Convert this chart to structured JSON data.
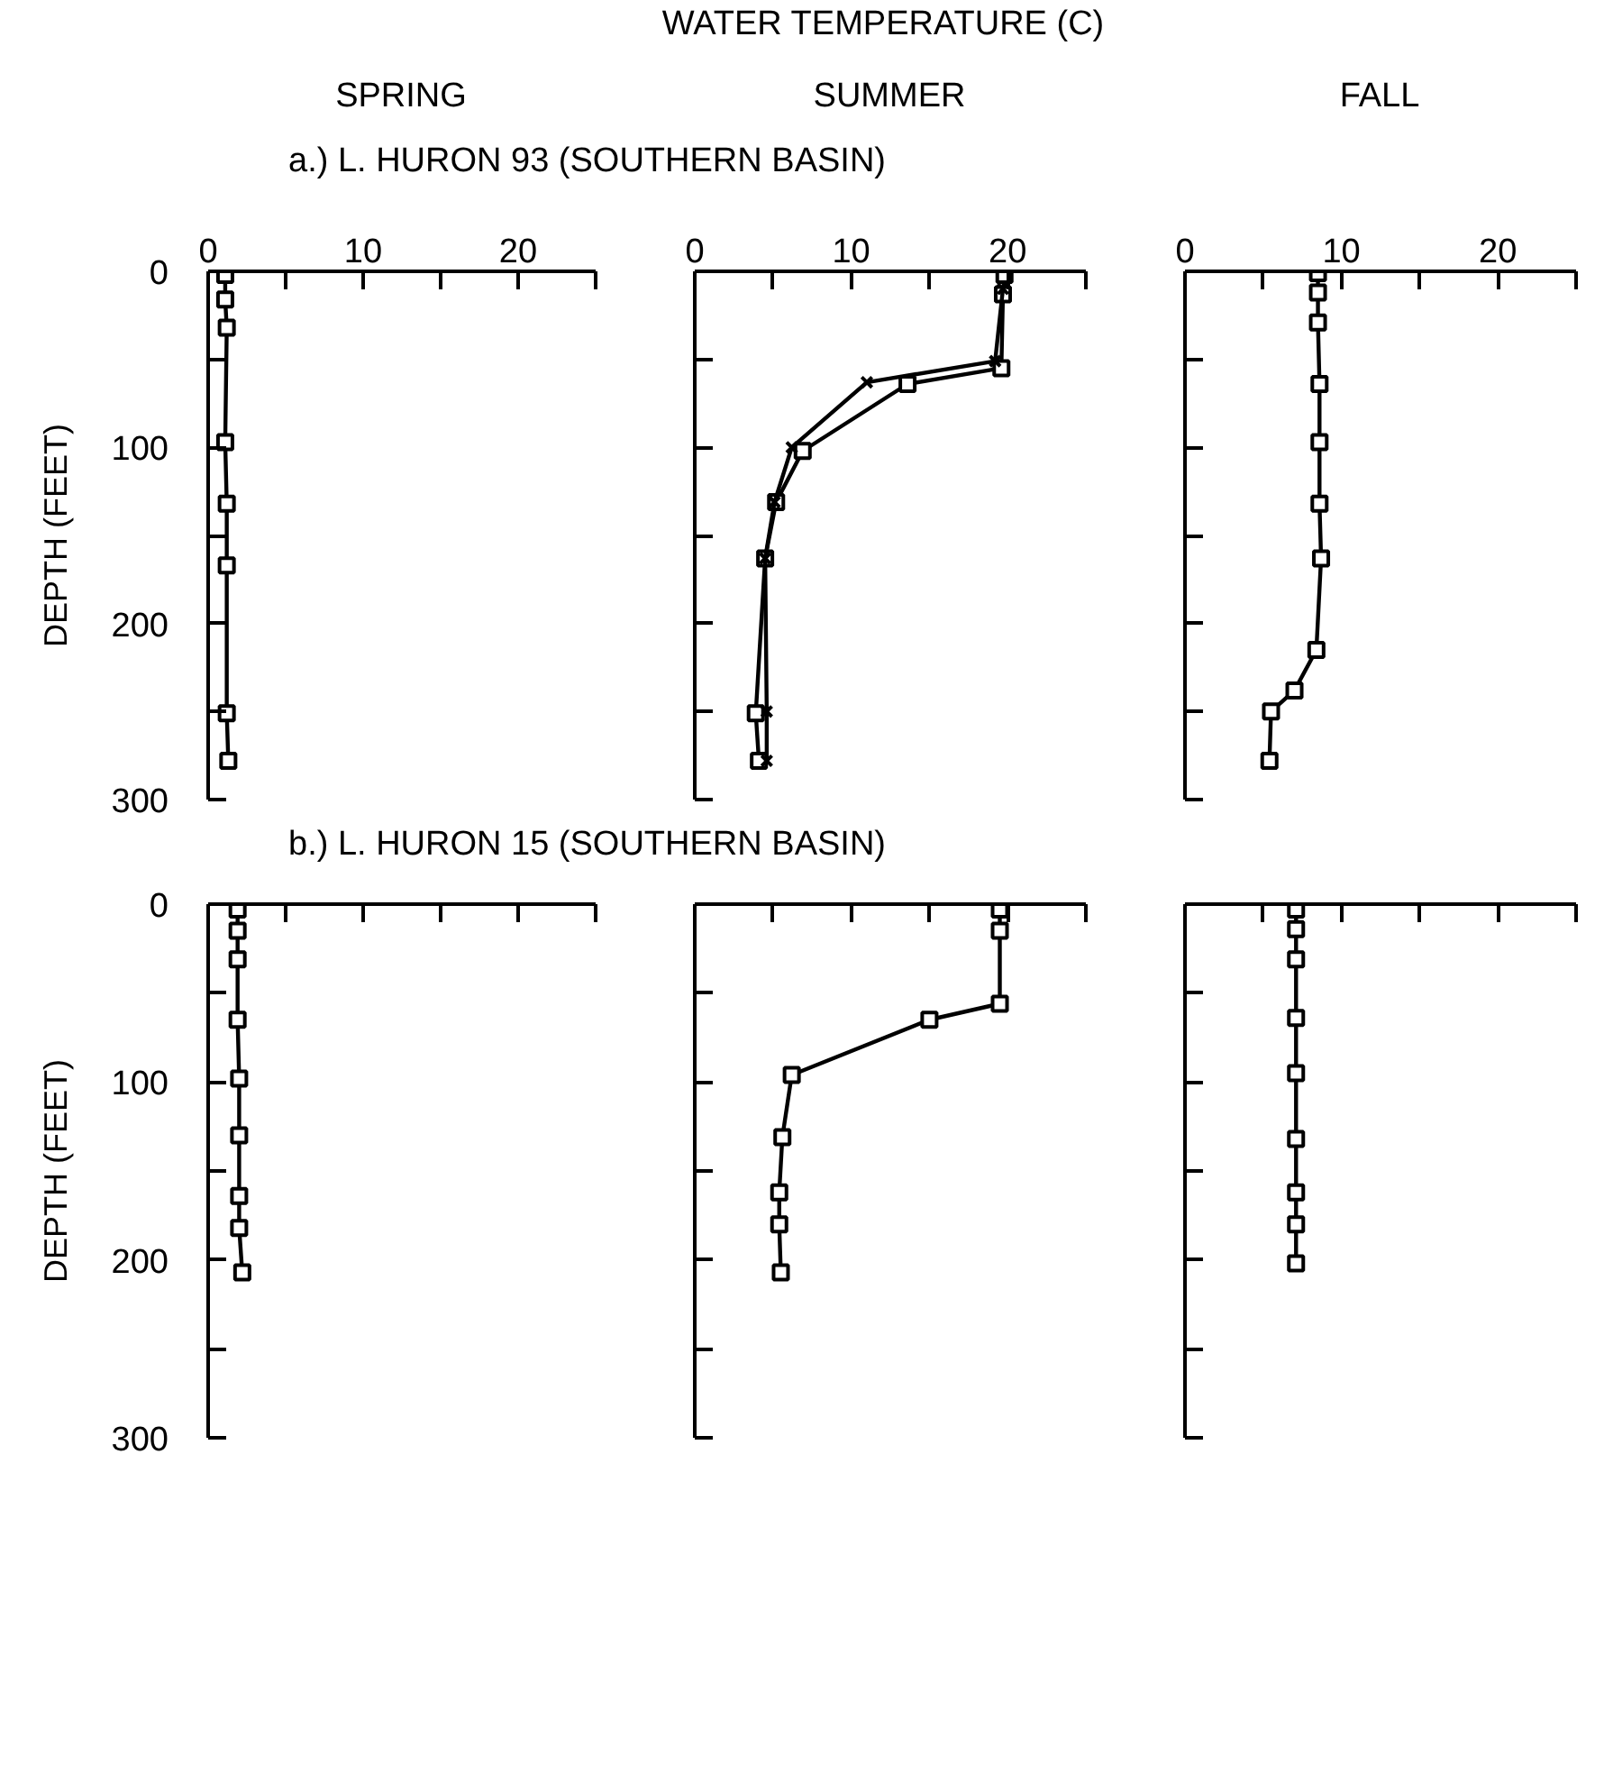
{
  "chart_data": [
    {
      "type": "line",
      "title": "SPRING",
      "subtitle": "a.) L. HURON 93 (SOUTHERN BASIN)",
      "ylabel": "DEPTH (FEET)",
      "marker": "square",
      "grid": false,
      "xlim": [
        0,
        25
      ],
      "xticks": [
        0,
        {
          "value": 5,
          "label": null
        },
        10,
        {
          "value": 15,
          "label": null
        },
        20,
        {
          "value": 25,
          "label": null
        }
      ],
      "ylim": [
        300,
        0
      ],
      "yticks": [
        0,
        {
          "value": 50,
          "label": null
        },
        100,
        {
          "value": 150,
          "label": null
        },
        200,
        {
          "value": 250,
          "label": null
        },
        300
      ],
      "series": [
        {
          "color": "#000000",
          "x": [
            1.1,
            1.1,
            1.2,
            1.1,
            1.2,
            1.2,
            1.2,
            1.3
          ],
          "values": [
            2,
            16,
            32,
            97,
            132,
            167,
            251,
            278
          ]
        }
      ]
    },
    {
      "type": "line",
      "title": "SUMMER",
      "xlabel": "WATER TEMPERATURE (C)",
      "marker": "square",
      "grid": false,
      "tick_labels": "x",
      "xlim": [
        0,
        25
      ],
      "xticks": [
        0,
        {
          "value": 5,
          "label": null
        },
        10,
        {
          "value": 15,
          "label": null
        },
        20,
        {
          "value": 25,
          "label": null
        }
      ],
      "ylim": [
        300,
        0
      ],
      "yticks": [
        0,
        {
          "value": 50,
          "label": null
        },
        100,
        {
          "value": 150,
          "label": null
        },
        200,
        {
          "value": 250,
          "label": null
        },
        300
      ],
      "series": [
        {
          "color": "#000000",
          "marker": "square",
          "x": [
            19.8,
            19.7,
            19.6,
            13.6,
            6.9,
            5.2,
            4.5,
            3.9,
            4.1
          ],
          "values": [
            2,
            13,
            55,
            64,
            102,
            131,
            163,
            251,
            278
          ]
        },
        {
          "color": "#000000",
          "marker": "cross",
          "x": [
            19.7,
            19.2,
            11.0,
            6.2,
            5.1,
            4.5,
            4.6,
            4.6
          ],
          "values": [
            10,
            51,
            63,
            100,
            131,
            163,
            250,
            278
          ]
        }
      ]
    },
    {
      "type": "line",
      "title": "FALL",
      "marker": "square",
      "grid": false,
      "tick_labels": "x",
      "xlim": [
        0,
        25
      ],
      "xticks": [
        0,
        {
          "value": 5,
          "label": null
        },
        10,
        {
          "value": 15,
          "label": null
        },
        20,
        {
          "value": 25,
          "label": null
        }
      ],
      "ylim": [
        300,
        0
      ],
      "yticks": [
        0,
        {
          "value": 50,
          "label": null
        },
        100,
        {
          "value": 150,
          "label": null
        },
        200,
        {
          "value": 250,
          "label": null
        },
        300
      ],
      "series": [
        {
          "color": "#000000",
          "x": [
            8.5,
            8.5,
            8.5,
            8.6,
            8.6,
            8.6,
            8.7,
            8.4,
            7.0,
            5.5,
            5.4
          ],
          "values": [
            1,
            12,
            29,
            64,
            97,
            132,
            163,
            215,
            238,
            250,
            278
          ]
        }
      ]
    },
    {
      "type": "line",
      "subtitle": "b.) L. HURON 15 (SOUTHERN BASIN)",
      "ylabel": "DEPTH (FEET)",
      "marker": "square",
      "grid": false,
      "tick_labels": "y",
      "xlim": [
        0,
        25
      ],
      "xticks": [
        0,
        {
          "value": 5,
          "label": null
        },
        {
          "value": 10,
          "label": null
        },
        {
          "value": 15,
          "label": null
        },
        {
          "value": 20,
          "label": null
        },
        {
          "value": 25,
          "label": null
        }
      ],
      "ylim": [
        300,
        0
      ],
      "yticks": [
        0,
        {
          "value": 50,
          "label": null
        },
        100,
        {
          "value": 150,
          "label": null
        },
        200,
        {
          "value": 250,
          "label": null
        },
        300
      ],
      "series": [
        {
          "color": "#000000",
          "x": [
            1.9,
            1.9,
            1.9,
            1.9,
            2.0,
            2.0,
            2.0,
            2.0,
            2.2
          ],
          "values": [
            3,
            15,
            31,
            65,
            98,
            130,
            164,
            182,
            207
          ]
        }
      ]
    },
    {
      "type": "line",
      "marker": "square",
      "grid": false,
      "tick_labels": false,
      "xlim": [
        0,
        25
      ],
      "xticks": [
        0,
        {
          "value": 5,
          "label": null
        },
        {
          "value": 10,
          "label": null
        },
        {
          "value": 15,
          "label": null
        },
        {
          "value": 20,
          "label": null
        },
        {
          "value": 25,
          "label": null
        }
      ],
      "ylim": [
        300,
        0
      ],
      "yticks": [
        0,
        {
          "value": 50,
          "label": null
        },
        100,
        {
          "value": 150,
          "label": null
        },
        200,
        {
          "value": 250,
          "label": null
        },
        300
      ],
      "series": [
        {
          "color": "#000000",
          "x": [
            19.5,
            19.5,
            19.5,
            15.0,
            6.2,
            5.6,
            5.4,
            5.4,
            5.5
          ],
          "values": [
            3,
            15,
            56,
            65,
            96,
            131,
            162,
            180,
            207
          ]
        }
      ]
    },
    {
      "type": "line",
      "marker": "square",
      "grid": false,
      "tick_labels": false,
      "xlim": [
        0,
        25
      ],
      "xticks": [
        0,
        {
          "value": 5,
          "label": null
        },
        {
          "value": 10,
          "label": null
        },
        {
          "value": 15,
          "label": null
        },
        {
          "value": 20,
          "label": null
        },
        {
          "value": 25,
          "label": null
        }
      ],
      "ylim": [
        300,
        0
      ],
      "yticks": [
        0,
        {
          "value": 50,
          "label": null
        },
        100,
        {
          "value": 150,
          "label": null
        },
        200,
        {
          "value": 250,
          "label": null
        },
        300
      ],
      "series": [
        {
          "color": "#000000",
          "x": [
            7.1,
            7.1,
            7.1,
            7.1,
            7.1,
            7.1,
            7.1,
            7.1,
            7.1
          ],
          "values": [
            3,
            14,
            31,
            64,
            95,
            132,
            162,
            180,
            202
          ]
        }
      ]
    }
  ]
}
